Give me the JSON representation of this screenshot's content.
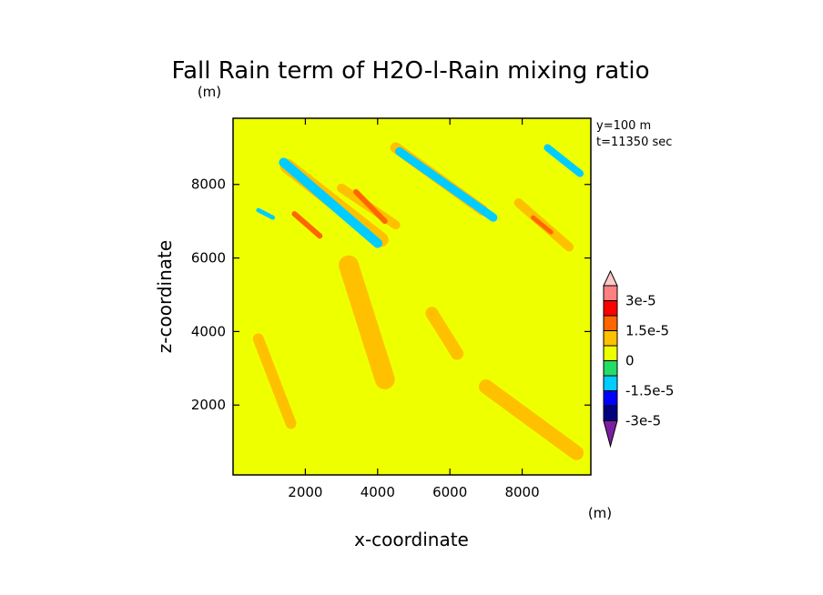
{
  "chart_data": {
    "type": "heatmap",
    "title": "Fall Rain term of H2O-l-Rain mixing ratio",
    "title_unit": "(m)",
    "xlabel": "x-coordinate",
    "ylabel": "z-coordinate",
    "xlim": [
      0,
      9900
    ],
    "ylim": [
      100,
      9800
    ],
    "x_ticks": [
      2000,
      4000,
      6000,
      8000
    ],
    "y_ticks": [
      2000,
      4000,
      6000,
      8000
    ],
    "x_tick_labels": [
      "2000",
      "4000",
      "6000",
      "8000"
    ],
    "y_tick_labels": [
      "2000",
      "4000",
      "6000",
      "8000"
    ],
    "info_lines": [
      "y=100  m",
      "t=11350 sec"
    ],
    "colorbar": {
      "unit": "(m)",
      "levels": [
        -3e-05,
        -2.25e-05,
        -1.5e-05,
        -7.5e-06,
        0,
        7.5e-06,
        1.5e-05,
        2.25e-05,
        3e-05
      ],
      "labels": [
        {
          "level": 3e-05,
          "text": "3e-5"
        },
        {
          "level": 1.5e-05,
          "text": "1.5e-5"
        },
        {
          "level": 0,
          "text": "0"
        },
        {
          "level": -1.5e-05,
          "text": "-1.5e-5"
        },
        {
          "level": -3e-05,
          "text": "-3e-5"
        }
      ],
      "colors": [
        "#7a1fa0",
        "#000080",
        "#0000ff",
        "#00ccff",
        "#22dd66",
        "#eeff00",
        "#ffc000",
        "#ff6600",
        "#ff0000",
        "#ff8080",
        "#ffc8c8"
      ]
    },
    "field": {
      "background_level": 3.5e-06,
      "regions": [
        {
          "level": 1e-05,
          "x0": 1500,
          "z0": 8500,
          "x1": 4100,
          "z1": 6500,
          "width": 400
        },
        {
          "level": 1e-05,
          "x0": 3000,
          "z0": 7900,
          "x1": 4500,
          "z1": 6900,
          "width": 250
        },
        {
          "level": 1e-05,
          "x0": 4500,
          "z0": 9000,
          "x1": 6900,
          "z1": 7300,
          "width": 300
        },
        {
          "level": 1e-05,
          "x0": 7900,
          "z0": 7500,
          "x1": 9300,
          "z1": 6300,
          "width": 250
        },
        {
          "level": 1e-05,
          "x0": 3200,
          "z0": 5800,
          "x1": 4200,
          "z1": 2700,
          "width": 550
        },
        {
          "level": 1e-05,
          "x0": 5500,
          "z0": 4500,
          "x1": 6200,
          "z1": 3400,
          "width": 350
        },
        {
          "level": 1e-05,
          "x0": 7000,
          "z0": 2500,
          "x1": 9500,
          "z1": 700,
          "width": 400
        },
        {
          "level": 1e-05,
          "x0": 700,
          "z0": 3800,
          "x1": 1600,
          "z1": 1500,
          "width": 300
        },
        {
          "level": 2e-05,
          "x0": 1700,
          "z0": 7200,
          "x1": 2400,
          "z1": 6600,
          "width": 150
        },
        {
          "level": 2e-05,
          "x0": 3400,
          "z0": 7800,
          "x1": 4200,
          "z1": 7000,
          "width": 150
        },
        {
          "level": 2e-05,
          "x0": 8300,
          "z0": 7100,
          "x1": 8800,
          "z1": 6700,
          "width": 120
        },
        {
          "level": -1e-05,
          "x0": 1400,
          "z0": 8600,
          "x1": 4000,
          "z1": 6400,
          "width": 260
        },
        {
          "level": -1e-05,
          "x0": 4600,
          "z0": 8900,
          "x1": 7200,
          "z1": 7100,
          "width": 230
        },
        {
          "level": -1e-05,
          "x0": 8700,
          "z0": 9000,
          "x1": 9600,
          "z1": 8300,
          "width": 200
        },
        {
          "level": -1e-05,
          "x0": 700,
          "z0": 7300,
          "x1": 1100,
          "z1": 7100,
          "width": 120
        }
      ]
    }
  }
}
